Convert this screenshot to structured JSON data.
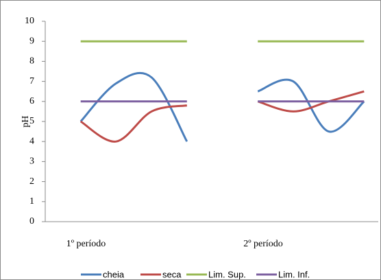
{
  "chart_data": {
    "type": "line",
    "y_label": "pH",
    "categories": [
      "1º período",
      null,
      null,
      null,
      null,
      "2º período",
      null,
      null,
      null
    ],
    "series": [
      {
        "name": "cheia",
        "color": "#4a7ebb",
        "values": [
          5,
          6.9,
          7.2,
          4,
          null,
          6.5,
          7,
          4.5,
          6
        ]
      },
      {
        "name": "seca",
        "color": "#be4b48",
        "values": [
          5,
          4,
          5.5,
          5.8,
          null,
          6,
          5.5,
          6,
          6.5
        ]
      },
      {
        "name": "Lim. Sup.",
        "color": "#98b954",
        "values": [
          9,
          9,
          9,
          9,
          null,
          9,
          9,
          9,
          9
        ]
      },
      {
        "name": "Lim. Inf.",
        "color": "#7d60a0",
        "values": [
          6,
          6,
          6,
          6,
          null,
          6,
          6,
          6,
          6
        ]
      }
    ],
    "ylim": [
      0,
      10
    ],
    "yticks": [
      0,
      1,
      2,
      3,
      4,
      5,
      6,
      7,
      8,
      9,
      10
    ],
    "smooth": true,
    "legend": "bottom"
  }
}
